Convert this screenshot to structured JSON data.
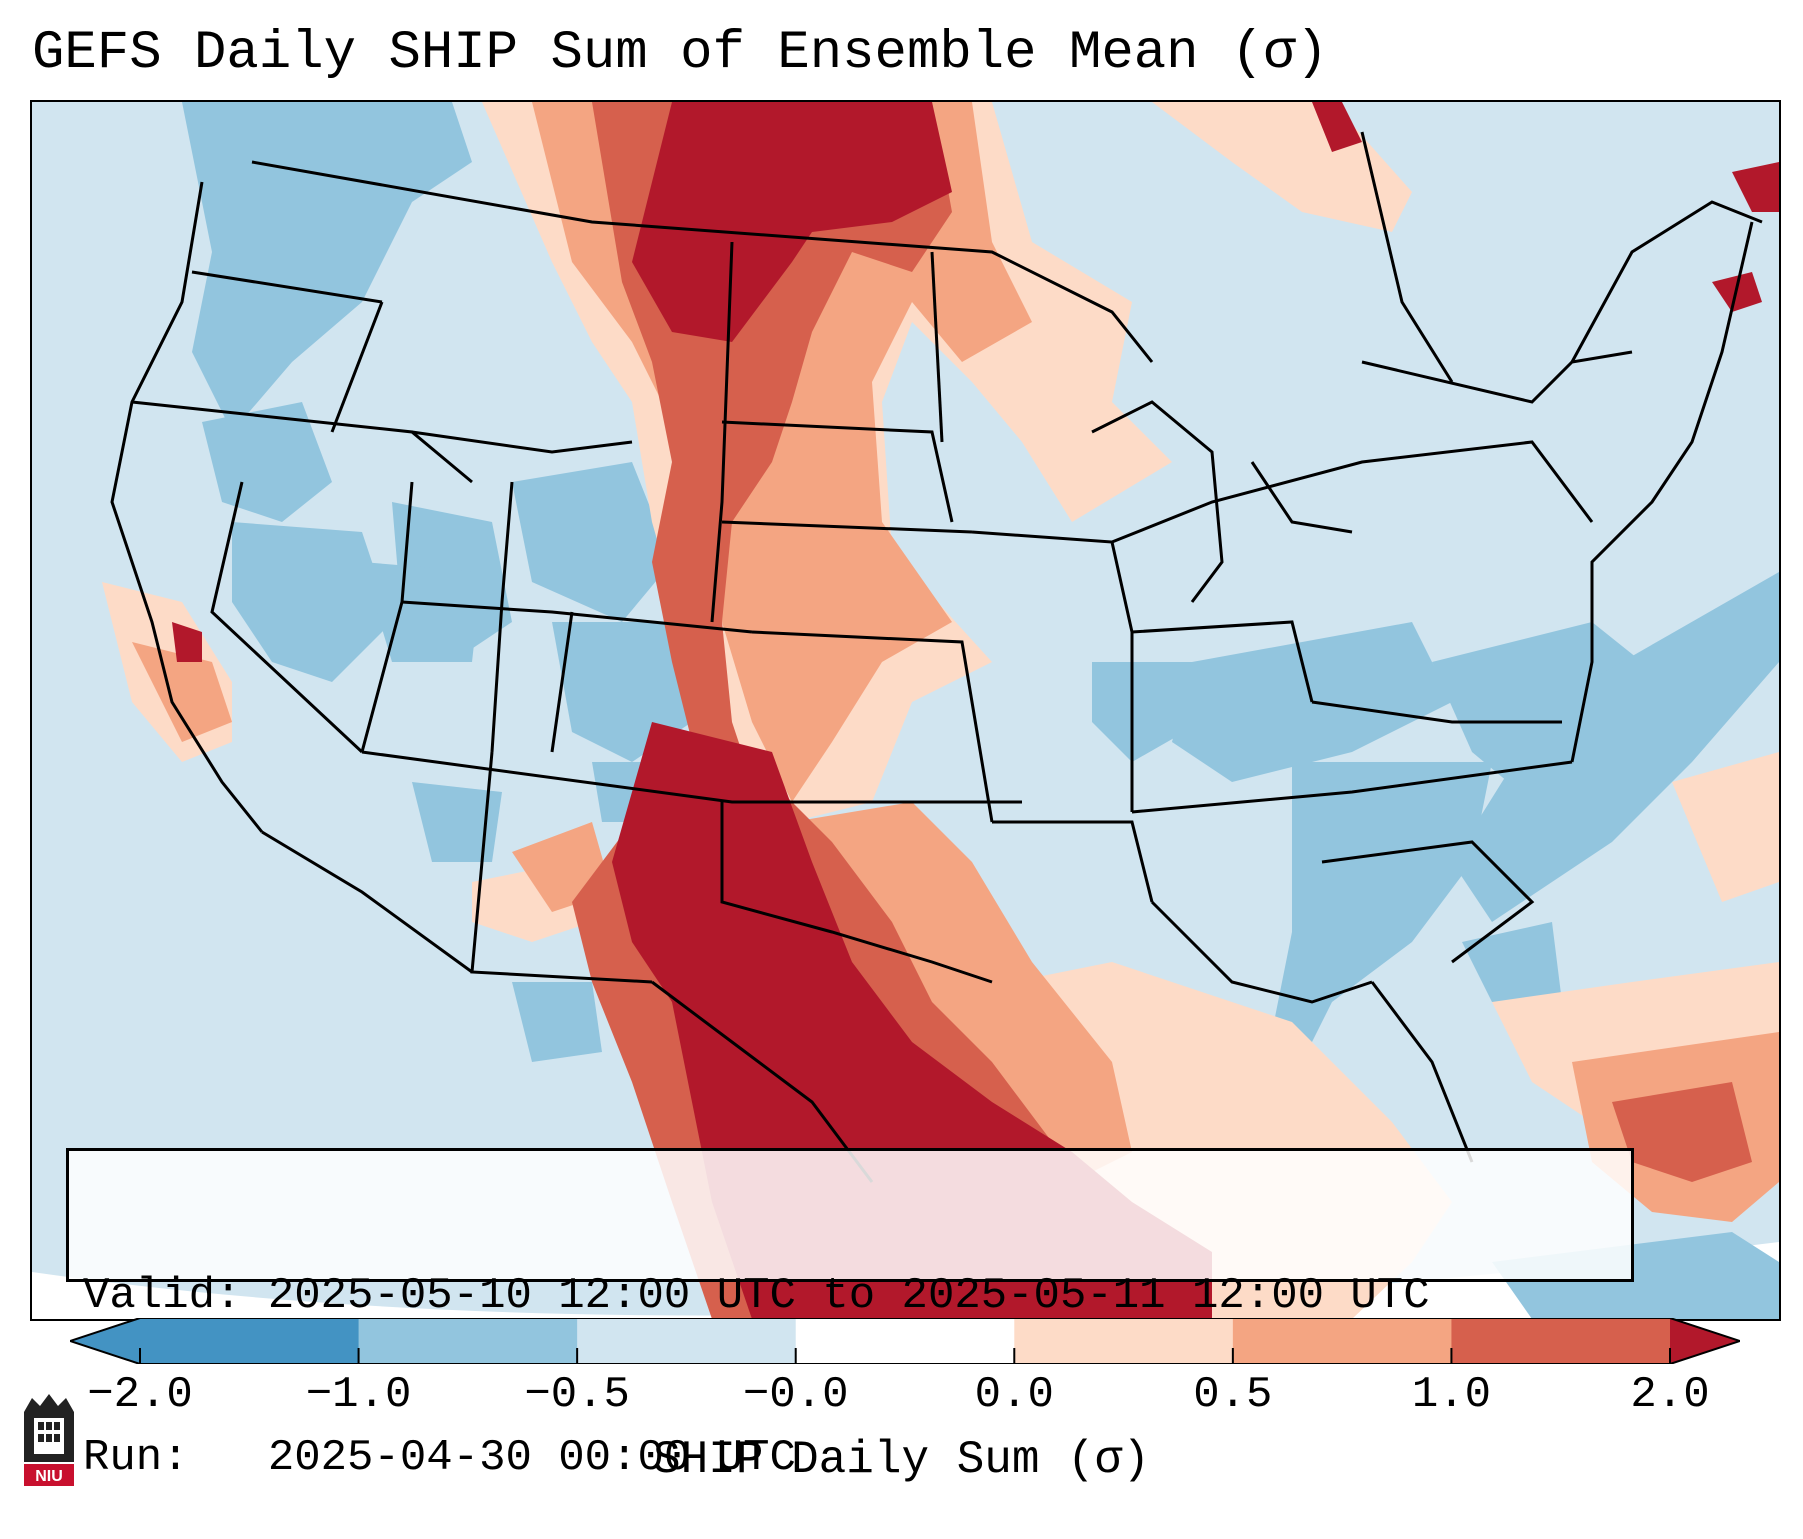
{
  "title": "GEFS Daily SHIP Sum of Ensemble Mean (σ)",
  "info": {
    "valid_line": "Valid: 2025-05-10 12:00 UTC to 2025-05-11 12:00 UTC",
    "run_line": "Run:   2025-04-30 00:00 UTC"
  },
  "colorbar": {
    "label": "SHIP Daily Sum (σ)",
    "ticks": [
      "−2.0",
      "−1.0",
      "−0.5",
      "−0.0",
      "0.0",
      "0.5",
      "1.0",
      "2.0"
    ],
    "colors": [
      "#4393c3",
      "#92c5de",
      "#d1e5f0",
      "#ffffff",
      "#fddbc7",
      "#f4a582",
      "#d6604d",
      "#b2182b"
    ]
  },
  "logo": {
    "text": "NIU",
    "icon": "niu-logo-icon"
  },
  "map_colors": {
    "ocean": "#d1e5f0",
    "light_blue": "#d1e5f0",
    "mid_blue": "#92c5de",
    "light_red": "#fddbc7",
    "mid_red": "#f4a582",
    "red": "#d6604d",
    "dark_red": "#b2182b",
    "border": "#000000"
  }
}
